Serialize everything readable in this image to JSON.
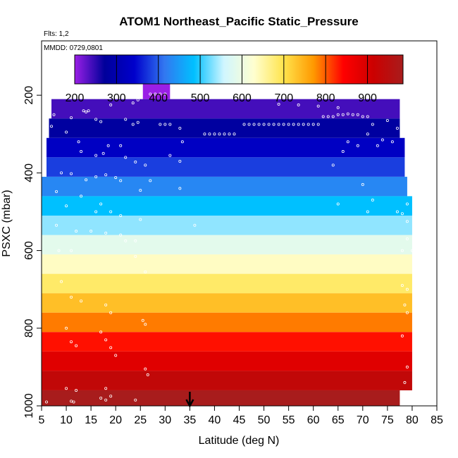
{
  "chart_data": {
    "type": "heatmap",
    "title": "ATOM1 Northeast_Pacific Static_Pressure",
    "flights_label": "Flts: 1,2",
    "date_label": "MMDD: 0729,0801",
    "xlabel": "Latitude (deg N)",
    "ylabel": "PSXC (mbar)",
    "xlim": [
      5,
      85
    ],
    "ylim": [
      1000,
      60
    ],
    "x_ticks": [
      5,
      10,
      15,
      20,
      25,
      30,
      35,
      40,
      45,
      50,
      55,
      60,
      65,
      70,
      75,
      80,
      85
    ],
    "y_ticks": [
      200,
      400,
      600,
      800,
      1000
    ],
    "colorbar": {
      "range": [
        200,
        985
      ],
      "ticks": [
        200,
        300,
        400,
        500,
        600,
        700,
        800,
        900
      ],
      "colors": [
        "#9a1fe6",
        "#00009a",
        "#0000cc",
        "#3277f0",
        "#00c0ff",
        "#d0f6ff",
        "#ffffd0",
        "#ffe44d",
        "#ff9900",
        "#ff0000",
        "#cc0000",
        "#a81c1c"
      ]
    },
    "bins": [
      {
        "p_top": 160,
        "p_bot": 210,
        "lat_min": 25.5,
        "lat_max": 31,
        "value": 200
      },
      {
        "p_top": 210,
        "p_bot": 260,
        "lat_min": 7,
        "lat_max": 77.5,
        "value": 240
      },
      {
        "p_top": 260,
        "p_bot": 310,
        "lat_min": 6.5,
        "lat_max": 77.5,
        "value": 280
      },
      {
        "p_top": 310,
        "p_bot": 360,
        "lat_min": 6,
        "lat_max": 78.5,
        "value": 330
      },
      {
        "p_top": 360,
        "p_bot": 410,
        "lat_min": 6,
        "lat_max": 78.5,
        "value": 380
      },
      {
        "p_top": 410,
        "p_bot": 460,
        "lat_min": 5,
        "lat_max": 79,
        "value": 430
      },
      {
        "p_top": 460,
        "p_bot": 510,
        "lat_min": 5,
        "lat_max": 80,
        "value": 485
      },
      {
        "p_top": 510,
        "p_bot": 560,
        "lat_min": 5,
        "lat_max": 80,
        "value": 535
      },
      {
        "p_top": 560,
        "p_bot": 610,
        "lat_min": 5,
        "lat_max": 80,
        "value": 585
      },
      {
        "p_top": 610,
        "p_bot": 660,
        "lat_min": 5,
        "lat_max": 80,
        "value": 635
      },
      {
        "p_top": 660,
        "p_bot": 710,
        "lat_min": 5,
        "lat_max": 80,
        "value": 685
      },
      {
        "p_top": 710,
        "p_bot": 760,
        "lat_min": 5,
        "lat_max": 80,
        "value": 735
      },
      {
        "p_top": 760,
        "p_bot": 810,
        "lat_min": 5,
        "lat_max": 80,
        "value": 785
      },
      {
        "p_top": 810,
        "p_bot": 860,
        "lat_min": 5,
        "lat_max": 80,
        "value": 835
      },
      {
        "p_top": 860,
        "p_bot": 910,
        "lat_min": 5,
        "lat_max": 80,
        "value": 885
      },
      {
        "p_top": 910,
        "p_bot": 960,
        "lat_min": 5,
        "lat_max": 80,
        "value": 935
      },
      {
        "p_top": 960,
        "p_bot": 1010,
        "lat_min": 5,
        "lat_max": 77.5,
        "value": 985
      }
    ],
    "samples": [
      [
        27,
        197
      ],
      [
        28,
        197
      ],
      [
        29,
        197
      ],
      [
        30,
        197
      ],
      [
        24.5,
        212
      ],
      [
        19,
        225
      ],
      [
        23.5,
        220
      ],
      [
        53,
        223
      ],
      [
        57,
        225
      ],
      [
        61,
        228
      ],
      [
        65,
        232
      ],
      [
        7.5,
        250
      ],
      [
        11,
        258
      ],
      [
        13.5,
        240
      ],
      [
        14,
        243
      ],
      [
        14.5,
        240
      ],
      [
        16,
        262
      ],
      [
        17,
        268
      ],
      [
        22,
        262
      ],
      [
        23.5,
        275
      ],
      [
        24.5,
        270
      ],
      [
        29,
        275
      ],
      [
        30,
        275
      ],
      [
        31,
        275
      ],
      [
        33,
        285
      ],
      [
        38,
        300
      ],
      [
        39,
        300
      ],
      [
        40,
        300
      ],
      [
        41,
        300
      ],
      [
        42,
        300
      ],
      [
        43,
        300
      ],
      [
        44,
        300
      ],
      [
        46,
        275
      ],
      [
        47,
        275
      ],
      [
        48,
        275
      ],
      [
        49,
        275
      ],
      [
        50,
        275
      ],
      [
        51,
        275
      ],
      [
        52,
        275
      ],
      [
        53,
        275
      ],
      [
        54,
        275
      ],
      [
        55,
        275
      ],
      [
        56,
        275
      ],
      [
        57,
        275
      ],
      [
        58,
        275
      ],
      [
        59,
        275
      ],
      [
        60,
        275
      ],
      [
        61,
        275
      ],
      [
        62,
        255
      ],
      [
        63,
        255
      ],
      [
        64,
        255
      ],
      [
        65,
        250
      ],
      [
        66,
        250
      ],
      [
        67,
        248
      ],
      [
        68,
        250
      ],
      [
        69,
        250
      ],
      [
        70,
        255
      ],
      [
        71,
        255
      ],
      [
        72,
        275
      ],
      [
        75,
        265
      ],
      [
        77,
        285
      ],
      [
        7,
        280
      ],
      [
        10,
        295
      ],
      [
        12.5,
        320
      ],
      [
        13,
        345
      ],
      [
        16,
        355
      ],
      [
        17.5,
        350
      ],
      [
        18.5,
        330
      ],
      [
        21,
        330
      ],
      [
        22,
        360
      ],
      [
        24,
        372
      ],
      [
        26,
        380
      ],
      [
        31,
        355
      ],
      [
        33,
        370
      ],
      [
        33.5,
        320
      ],
      [
        64,
        380
      ],
      [
        66,
        345
      ],
      [
        67,
        320
      ],
      [
        69,
        330
      ],
      [
        71,
        300
      ],
      [
        73,
        330
      ],
      [
        74,
        315
      ],
      [
        76,
        320
      ],
      [
        9,
        400
      ],
      [
        11,
        402
      ],
      [
        14,
        418
      ],
      [
        16,
        410
      ],
      [
        18,
        405
      ],
      [
        20,
        412
      ],
      [
        21,
        420
      ],
      [
        25,
        445
      ],
      [
        27,
        420
      ],
      [
        33,
        440
      ],
      [
        70,
        430
      ],
      [
        72,
        470
      ],
      [
        8,
        448
      ],
      [
        10,
        485
      ],
      [
        13,
        460
      ],
      [
        16,
        500
      ],
      [
        17,
        480
      ],
      [
        19,
        500
      ],
      [
        21,
        510
      ],
      [
        25,
        520
      ],
      [
        36,
        535
      ],
      [
        65,
        480
      ],
      [
        71,
        500
      ],
      [
        77,
        500
      ],
      [
        79,
        480
      ],
      [
        78,
        505
      ],
      [
        79,
        525
      ],
      [
        8,
        535
      ],
      [
        12,
        550
      ],
      [
        15,
        550
      ],
      [
        18,
        555
      ],
      [
        21,
        560
      ],
      [
        22,
        575
      ],
      [
        24,
        575
      ],
      [
        8.5,
        600
      ],
      [
        11,
        600
      ],
      [
        78,
        600
      ],
      [
        79,
        570
      ],
      [
        80,
        600
      ],
      [
        24,
        615
      ],
      [
        26,
        655
      ],
      [
        9,
        680
      ],
      [
        11,
        720
      ],
      [
        13,
        730
      ],
      [
        18,
        740
      ],
      [
        19,
        760
      ],
      [
        25.5,
        780
      ],
      [
        26,
        790
      ],
      [
        78,
        690
      ],
      [
        79,
        700
      ],
      [
        78.5,
        740
      ],
      [
        79,
        760
      ],
      [
        10,
        800
      ],
      [
        11,
        835
      ],
      [
        12,
        845
      ],
      [
        17,
        810
      ],
      [
        18,
        830
      ],
      [
        19,
        850
      ],
      [
        20,
        870
      ],
      [
        26,
        905
      ],
      [
        26.5,
        920
      ],
      [
        78,
        820
      ],
      [
        79,
        900
      ],
      [
        78.5,
        940
      ],
      [
        10,
        955
      ],
      [
        12,
        960
      ],
      [
        18,
        955
      ],
      [
        17,
        980
      ],
      [
        18,
        985
      ],
      [
        19,
        975
      ],
      [
        24,
        985
      ],
      [
        6,
        990
      ],
      [
        11,
        988
      ],
      [
        11.5,
        990
      ],
      [
        79,
        965
      ]
    ],
    "marker": {
      "x": 35,
      "label": "arrow"
    }
  }
}
